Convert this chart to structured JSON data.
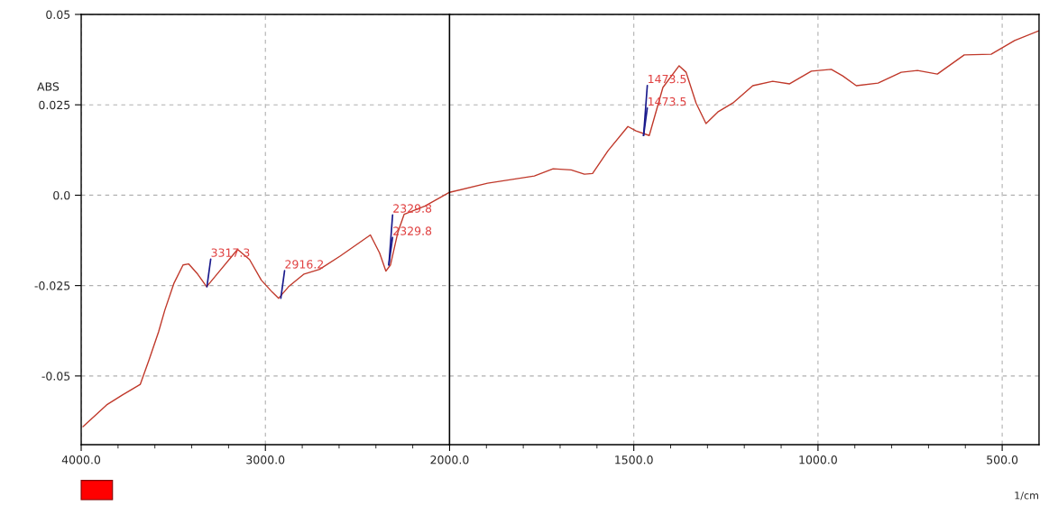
{
  "chart_data": [
    {
      "type": "line",
      "ylabel": "ABS",
      "xlim": [
        4000,
        2000
      ],
      "ylim": [
        -0.069,
        0.05
      ],
      "xticks": [
        {
          "value": 4000,
          "label": "4000.0"
        },
        {
          "value": 3800,
          "label": null
        },
        {
          "value": 3600,
          "label": null
        },
        {
          "value": 3400,
          "label": null
        },
        {
          "value": 3200,
          "label": null
        },
        {
          "value": 3000,
          "label": "3000.0"
        },
        {
          "value": 2800,
          "label": null
        },
        {
          "value": 2600,
          "label": null
        },
        {
          "value": 2400,
          "label": null
        },
        {
          "value": 2200,
          "label": null
        }
      ],
      "yticks": [
        -0.05,
        -0.025,
        {
          "value": 0,
          "label": "0.0"
        },
        0.025,
        0.05
      ],
      "grid": true,
      "series": [
        {
          "color": "#c0392b",
          "x": [
            3990,
            3862,
            3778,
            3679,
            3630,
            3580,
            3546,
            3496,
            3447,
            3417,
            3368,
            3319,
            3249,
            3151,
            3086,
            3022,
            2963,
            2928,
            2874,
            2790,
            2706,
            2593,
            2444,
            2430,
            2380,
            2346,
            2321,
            2281,
            2247,
            2133,
            2000
          ],
          "values": [
            -0.064,
            -0.058,
            -0.0553,
            -0.0523,
            -0.0453,
            -0.0378,
            -0.0318,
            -0.0243,
            -0.0193,
            -0.019,
            -0.0218,
            -0.0253,
            -0.021,
            -0.015,
            -0.0178,
            -0.0235,
            -0.0268,
            -0.0285,
            -0.0253,
            -0.0218,
            -0.0205,
            -0.0168,
            -0.0115,
            -0.011,
            -0.016,
            -0.021,
            -0.0193,
            -0.0103,
            -0.0053,
            -0.003,
            0.0008
          ]
        }
      ],
      "annotations": [
        {
          "text": "3317.3",
          "x": 3317.3,
          "y": -0.0253
        },
        {
          "text": "2916.2",
          "x": 2916.2,
          "y": -0.0285
        },
        {
          "text": "2329.8",
          "x": 2329.8,
          "y": -0.0193
        },
        {
          "text": "2329.8",
          "x": 2329.8,
          "y": -0.0193
        }
      ]
    },
    {
      "type": "line",
      "xlabel": "1/cm",
      "xlim": [
        2000,
        400
      ],
      "ylim": [
        -0.069,
        0.05
      ],
      "xticks": [
        {
          "value": 2000,
          "label": "2000.0"
        },
        {
          "value": 1900,
          "label": null
        },
        {
          "value": 1800,
          "label": null
        },
        {
          "value": 1700,
          "label": null
        },
        {
          "value": 1600,
          "label": null
        },
        {
          "value": 1500,
          "label": "1500.0"
        },
        {
          "value": 1400,
          "label": null
        },
        {
          "value": 1300,
          "label": null
        },
        {
          "value": 1200,
          "label": null
        },
        {
          "value": 1100,
          "label": null
        },
        {
          "value": 1000,
          "label": "1000.0"
        },
        {
          "value": 900,
          "label": null
        },
        {
          "value": 800,
          "label": null
        },
        {
          "value": 700,
          "label": null
        },
        {
          "value": 600,
          "label": null
        },
        {
          "value": 500,
          "label": "500.0"
        }
      ],
      "yticks": [
        -0.05,
        -0.025,
        0,
        0.025,
        0.05
      ],
      "tick_labels": "x",
      "grid": true,
      "series": [
        {
          "color": "#c0392b",
          "x": [
            2000,
            1897,
            1770,
            1719,
            1670,
            1634,
            1612,
            1570,
            1516,
            1494,
            1458,
            1421,
            1377,
            1358,
            1331,
            1304,
            1272,
            1231,
            1177,
            1123,
            1077,
            1018,
            964,
            933,
            896,
            837,
            774,
            730,
            676,
            603,
            530,
            466,
            400
          ],
          "values": [
            0.0008,
            0.0033,
            0.0053,
            0.0073,
            0.007,
            0.0058,
            0.006,
            0.0123,
            0.019,
            0.0178,
            0.0165,
            0.0298,
            0.0358,
            0.034,
            0.0255,
            0.0198,
            0.023,
            0.0255,
            0.0303,
            0.0315,
            0.0308,
            0.0343,
            0.0348,
            0.033,
            0.0303,
            0.031,
            0.034,
            0.0345,
            0.0335,
            0.0388,
            0.039,
            0.0428,
            0.0455
          ]
        }
      ],
      "annotations": [
        {
          "text": "1473.5",
          "x": 1473.5,
          "y": 0.0165
        },
        {
          "text": "1473.5",
          "x": 1473.5,
          "y": 0.0165
        }
      ]
    }
  ]
}
